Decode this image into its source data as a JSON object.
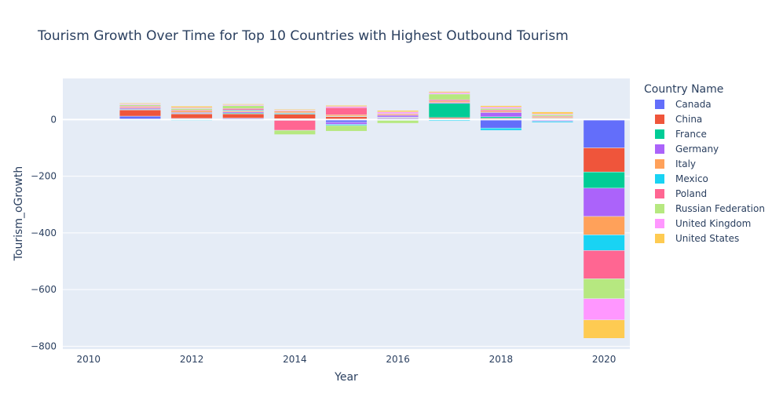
{
  "chart_data": {
    "type": "bar",
    "stacking": "relative",
    "title": "Tourism Growth Over Time for Top 10 Countries with Highest Outbound Tourism",
    "xlabel": "Year",
    "ylabel": "Tourism_oGrowth",
    "xlim": [
      2009.5,
      2020.5
    ],
    "ylim": [
      -810,
      145
    ],
    "x_ticks": [
      2010,
      2012,
      2014,
      2016,
      2018,
      2020
    ],
    "y_ticks": [
      0,
      -200,
      -400,
      -600,
      -800
    ],
    "y_tick_labels": [
      "0",
      "−200",
      "−400",
      "−600",
      "−800"
    ],
    "legend_title": "Country Name",
    "legend_position": "right",
    "x": [
      2011,
      2012,
      2013,
      2014,
      2015,
      2016,
      2017,
      2018,
      2019,
      2020
    ],
    "series": [
      {
        "name": "Canada",
        "color": "#636efa",
        "values": [
          12,
          4,
          5,
          3,
          -10,
          5,
          3,
          -30,
          -3,
          -100
        ]
      },
      {
        "name": "China",
        "color": "#ef553b",
        "values": [
          22,
          16,
          15,
          16,
          10,
          2,
          4,
          5,
          3,
          -85
        ]
      },
      {
        "name": "France",
        "color": "#00cc96",
        "values": [
          2,
          2,
          3,
          3,
          2,
          2,
          50,
          5,
          2,
          -57
        ]
      },
      {
        "name": "Germany",
        "color": "#ab63fa",
        "values": [
          4,
          3,
          4,
          2,
          -7,
          6,
          3,
          15,
          -3,
          -100
        ]
      },
      {
        "name": "Italy",
        "color": "#ffa15a",
        "values": [
          3,
          6,
          4,
          6,
          5,
          4,
          5,
          4,
          4,
          -65
        ]
      },
      {
        "name": "Mexico",
        "color": "#19d3f3",
        "values": [
          -3,
          -4,
          3,
          -3,
          -4,
          -3,
          -5,
          -8,
          -4,
          -55
        ]
      },
      {
        "name": "Poland",
        "color": "#ff6692",
        "values": [
          4,
          3,
          5,
          -35,
          25,
          3,
          5,
          5,
          3,
          -100
        ]
      },
      {
        "name": "Russian Federation",
        "color": "#b6e880",
        "values": [
          5,
          5,
          10,
          -15,
          -20,
          -10,
          20,
          5,
          5,
          -70
        ]
      },
      {
        "name": "United Kingdom",
        "color": "#ff97ff",
        "values": [
          3,
          3,
          3,
          3,
          4,
          5,
          5,
          5,
          3,
          -75
        ]
      },
      {
        "name": "United States",
        "color": "#fecb52",
        "values": [
          3,
          5,
          3,
          3,
          4,
          5,
          4,
          5,
          7,
          -65
        ]
      }
    ]
  }
}
